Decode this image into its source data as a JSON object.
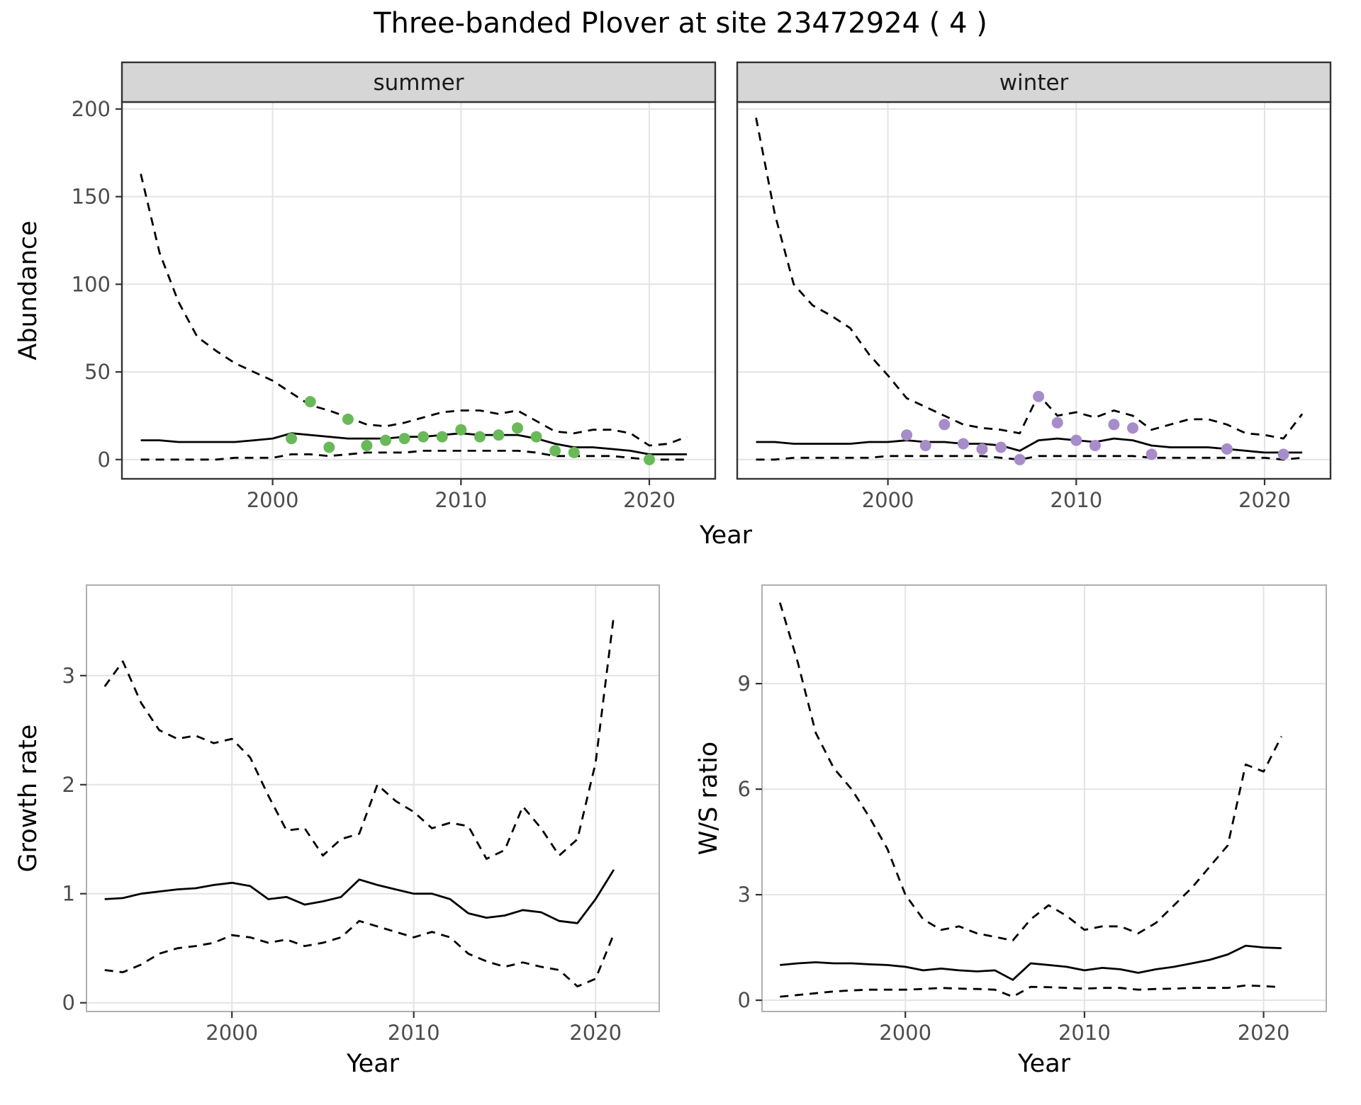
{
  "title": "Three-banded Plover at site 23472924 ( 4 )",
  "colors": {
    "background": "#ffffff",
    "line": "#000000",
    "grid": "#e4e4e4",
    "strip_bg": "#d6d6d6",
    "strip_border": "#333333",
    "panel_border_facet": "#333333",
    "panel_border_plain": "#b0b0b0",
    "tick_mark": "#333333",
    "tick_text": "#4d4d4d",
    "summer_point": "#69b958",
    "winter_point": "#a78cca"
  },
  "chart_data": [
    {
      "id": "abundance-summer",
      "type": "line",
      "facet_label": "summer",
      "xlabel": "Year",
      "ylabel": "Abundance",
      "xlim": [
        1992,
        2023.5
      ],
      "ylim": [
        -11,
        204
      ],
      "xticks": [
        2000,
        2010,
        2020
      ],
      "yticks": [
        0,
        50,
        100,
        150,
        200
      ],
      "x": [
        1993,
        1994,
        1995,
        1996,
        1997,
        1998,
        1999,
        2000,
        2001,
        2002,
        2003,
        2004,
        2005,
        2006,
        2007,
        2008,
        2009,
        2010,
        2011,
        2012,
        2013,
        2014,
        2015,
        2016,
        2017,
        2018,
        2019,
        2020,
        2021,
        2022
      ],
      "series": [
        {
          "name": "upper-ci",
          "style": "dashed",
          "y": [
            163,
            118,
            90,
            70,
            62,
            55,
            50,
            45,
            38,
            31,
            28,
            24,
            20,
            19,
            21,
            24,
            27,
            28,
            28,
            26,
            28,
            22,
            16,
            15,
            17,
            17,
            15,
            8,
            9,
            13
          ]
        },
        {
          "name": "median",
          "style": "solid",
          "y": [
            11,
            11,
            10,
            10,
            10,
            10,
            11,
            12,
            15,
            14,
            13,
            12,
            12,
            12,
            13,
            13,
            14,
            15,
            14,
            14,
            14,
            12,
            9,
            7,
            7,
            6,
            5,
            3,
            3,
            3
          ]
        },
        {
          "name": "lower-ci",
          "style": "dashed",
          "y": [
            0,
            0,
            0,
            0,
            0,
            1,
            1,
            1,
            3,
            3,
            2,
            3,
            4,
            4,
            4,
            5,
            5,
            5,
            5,
            5,
            5,
            4,
            2,
            2,
            2,
            2,
            1,
            0,
            0,
            0
          ]
        }
      ],
      "points": {
        "name": "observed-count",
        "color": "#69b958",
        "x": [
          2001,
          2002,
          2003,
          2004,
          2005,
          2006,
          2007,
          2008,
          2009,
          2010,
          2011,
          2012,
          2013,
          2014,
          2015,
          2016,
          2020
        ],
        "y": [
          12,
          33,
          7,
          23,
          8,
          11,
          12,
          13,
          13,
          17,
          13,
          14,
          18,
          13,
          5,
          4,
          0
        ]
      }
    },
    {
      "id": "abundance-winter",
      "type": "line",
      "facet_label": "winter",
      "xlabel": "Year",
      "ylabel": "Abundance",
      "xlim": [
        1992,
        2023.5
      ],
      "ylim": [
        -11,
        204
      ],
      "xticks": [
        2000,
        2010,
        2020
      ],
      "yticks": [
        0,
        50,
        100,
        150,
        200
      ],
      "x": [
        1993,
        1994,
        1995,
        1996,
        1997,
        1998,
        1999,
        2000,
        2001,
        2002,
        2003,
        2004,
        2005,
        2006,
        2007,
        2008,
        2009,
        2010,
        2011,
        2012,
        2013,
        2014,
        2015,
        2016,
        2017,
        2018,
        2019,
        2020,
        2021,
        2022
      ],
      "series": [
        {
          "name": "upper-ci",
          "style": "dashed",
          "y": [
            195,
            140,
            100,
            88,
            82,
            75,
            60,
            48,
            35,
            30,
            25,
            20,
            18,
            17,
            15,
            37,
            25,
            27,
            24,
            28,
            25,
            17,
            20,
            23,
            23,
            20,
            15,
            14,
            12,
            26
          ]
        },
        {
          "name": "median",
          "style": "solid",
          "y": [
            10,
            10,
            9,
            9,
            9,
            9,
            10,
            10,
            11,
            10,
            10,
            9,
            9,
            8,
            5,
            11,
            12,
            11,
            10,
            12,
            11,
            8,
            7,
            7,
            7,
            6,
            5,
            4,
            4,
            4
          ]
        },
        {
          "name": "lower-ci",
          "style": "dashed",
          "y": [
            0,
            0,
            1,
            1,
            1,
            1,
            1,
            2,
            2,
            2,
            2,
            2,
            2,
            1,
            0,
            2,
            2,
            2,
            2,
            2,
            2,
            1,
            1,
            1,
            1,
            1,
            1,
            1,
            0,
            1
          ]
        }
      ],
      "points": {
        "name": "observed-count",
        "color": "#a78cca",
        "x": [
          2001,
          2002,
          2003,
          2004,
          2005,
          2006,
          2007,
          2008,
          2009,
          2010,
          2011,
          2012,
          2013,
          2014,
          2018,
          2021
        ],
        "y": [
          14,
          8,
          20,
          9,
          6,
          7,
          0,
          36,
          21,
          11,
          8,
          20,
          18,
          3,
          6,
          3
        ]
      }
    },
    {
      "id": "growth-rate",
      "type": "line",
      "facet_label": null,
      "xlabel": "Year",
      "ylabel": "Growth rate",
      "xlim": [
        1992,
        2023.5
      ],
      "ylim": [
        -0.08,
        3.83
      ],
      "xticks": [
        2000,
        2010,
        2020
      ],
      "yticks": [
        0,
        1,
        2,
        3
      ],
      "x": [
        1993,
        1994,
        1995,
        1996,
        1997,
        1998,
        1999,
        2000,
        2001,
        2002,
        2003,
        2004,
        2005,
        2006,
        2007,
        2008,
        2009,
        2010,
        2011,
        2012,
        2013,
        2014,
        2015,
        2016,
        2017,
        2018,
        2019,
        2020,
        2021
      ],
      "series": [
        {
          "name": "upper-ci",
          "style": "dashed",
          "y": [
            2.9,
            3.13,
            2.75,
            2.5,
            2.42,
            2.45,
            2.38,
            2.42,
            2.25,
            1.9,
            1.58,
            1.6,
            1.35,
            1.5,
            1.55,
            2.0,
            1.85,
            1.75,
            1.6,
            1.65,
            1.62,
            1.32,
            1.4,
            1.8,
            1.6,
            1.35,
            1.5,
            2.2,
            3.55
          ]
        },
        {
          "name": "median",
          "style": "solid",
          "y": [
            0.95,
            0.96,
            1.0,
            1.02,
            1.04,
            1.05,
            1.08,
            1.1,
            1.07,
            0.95,
            0.97,
            0.9,
            0.93,
            0.97,
            1.13,
            1.08,
            1.04,
            1.0,
            1.0,
            0.95,
            0.82,
            0.78,
            0.8,
            0.85,
            0.83,
            0.75,
            0.73,
            0.95,
            1.22
          ]
        },
        {
          "name": "lower-ci",
          "style": "dashed",
          "y": [
            0.3,
            0.28,
            0.35,
            0.45,
            0.5,
            0.52,
            0.55,
            0.62,
            0.6,
            0.55,
            0.58,
            0.52,
            0.55,
            0.6,
            0.75,
            0.7,
            0.65,
            0.6,
            0.65,
            0.6,
            0.45,
            0.38,
            0.33,
            0.37,
            0.33,
            0.3,
            0.15,
            0.22,
            0.63
          ]
        }
      ],
      "points": null
    },
    {
      "id": "ws-ratio",
      "type": "line",
      "facet_label": null,
      "xlabel": "Year",
      "ylabel": "W/S ratio",
      "xlim": [
        1992,
        2023.5
      ],
      "ylim": [
        -0.32,
        11.8
      ],
      "xticks": [
        2000,
        2010,
        2020
      ],
      "yticks": [
        0,
        3,
        6,
        9
      ],
      "x": [
        1993,
        1994,
        1995,
        1996,
        1997,
        1998,
        1999,
        2000,
        2001,
        2002,
        2003,
        2004,
        2005,
        2006,
        2007,
        2008,
        2009,
        2010,
        2011,
        2012,
        2013,
        2014,
        2015,
        2016,
        2017,
        2018,
        2019,
        2020,
        2021
      ],
      "series": [
        {
          "name": "upper-ci",
          "style": "dashed",
          "y": [
            11.3,
            9.6,
            7.6,
            6.6,
            6.0,
            5.2,
            4.3,
            3.0,
            2.3,
            2.0,
            2.1,
            1.9,
            1.8,
            1.7,
            2.3,
            2.7,
            2.4,
            2.0,
            2.1,
            2.1,
            1.9,
            2.2,
            2.7,
            3.2,
            3.8,
            4.4,
            6.7,
            6.5,
            7.5
          ]
        },
        {
          "name": "median",
          "style": "solid",
          "y": [
            1.0,
            1.05,
            1.08,
            1.05,
            1.05,
            1.02,
            1.0,
            0.95,
            0.85,
            0.9,
            0.85,
            0.82,
            0.85,
            0.58,
            1.05,
            1.0,
            0.95,
            0.85,
            0.92,
            0.88,
            0.78,
            0.88,
            0.95,
            1.05,
            1.15,
            1.3,
            1.55,
            1.5,
            1.48
          ]
        },
        {
          "name": "lower-ci",
          "style": "dashed",
          "y": [
            0.1,
            0.15,
            0.2,
            0.25,
            0.28,
            0.3,
            0.3,
            0.3,
            0.32,
            0.35,
            0.33,
            0.32,
            0.3,
            0.1,
            0.38,
            0.37,
            0.35,
            0.33,
            0.35,
            0.35,
            0.3,
            0.32,
            0.33,
            0.35,
            0.35,
            0.35,
            0.42,
            0.4,
            0.37
          ]
        }
      ],
      "points": null
    }
  ]
}
